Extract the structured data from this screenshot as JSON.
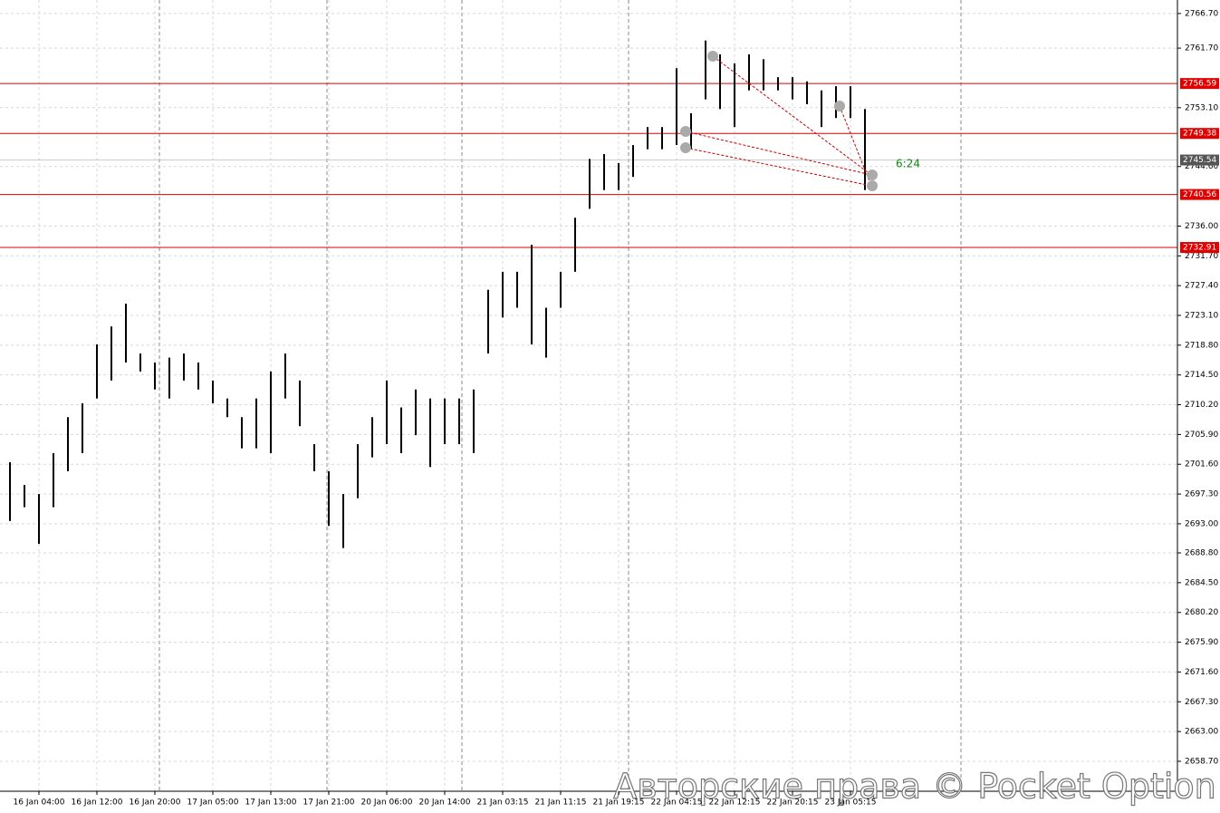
{
  "chart_data": {
    "type": "hilo",
    "color": "#000000",
    "ylim": [
      2653.46,
      2768.65
    ],
    "yticks": [
      {
        "value": 2766.7,
        "label": "2766.70"
      },
      {
        "value": 2761.7,
        "label": "2761.70"
      },
      {
        "value": 2753.1,
        "label": "2753.10"
      },
      {
        "value": 2744.6,
        "label": "2744.60"
      },
      {
        "value": 2736.0,
        "label": "2736.00"
      },
      {
        "value": 2731.7,
        "label": "2731.70"
      },
      {
        "value": 2727.4,
        "label": "2727.40"
      },
      {
        "value": 2723.1,
        "label": "2723.10"
      },
      {
        "value": 2718.8,
        "label": "2718.80"
      },
      {
        "value": 2714.5,
        "label": "2714.50"
      },
      {
        "value": 2710.2,
        "label": "2710.20"
      },
      {
        "value": 2705.9,
        "label": "2705.90"
      },
      {
        "value": 2701.6,
        "label": "2701.60"
      },
      {
        "value": 2697.3,
        "label": "2697.30"
      },
      {
        "value": 2693.0,
        "label": "2693.00"
      },
      {
        "value": 2688.8,
        "label": "2688.80"
      },
      {
        "value": 2684.5,
        "label": "2684.50"
      },
      {
        "value": 2680.2,
        "label": "2680.20"
      },
      {
        "value": 2675.9,
        "label": "2675.90"
      },
      {
        "value": 2671.6,
        "label": "2671.60"
      },
      {
        "value": 2667.3,
        "label": "2667.30"
      },
      {
        "value": 2663.0,
        "label": "2663.00"
      },
      {
        "value": 2658.7,
        "label": "2658.70"
      }
    ],
    "grid": true,
    "categories": [
      null,
      null,
      "16 Jan 04:00",
      null,
      null,
      null,
      "16 Jan 12:00",
      null,
      null,
      null,
      "16 Jan 20:00",
      null,
      null,
      null,
      "17 Jan 05:00",
      null,
      null,
      null,
      "17 Jan 13:00",
      null,
      null,
      null,
      "17 Jan 21:00",
      null,
      null,
      null,
      "20 Jan 06:00",
      null,
      null,
      null,
      "20 Jan 14:00",
      null,
      null,
      null,
      "21 Jan 03:15",
      null,
      null,
      null,
      "21 Jan 11:15",
      null,
      null,
      null,
      "21 Jan 19:15",
      null,
      null,
      null,
      "22 Jan 04:15",
      null,
      null,
      null,
      "22 Jan 12:15",
      null,
      null,
      null,
      "22 Jan 20:15",
      null,
      null,
      null,
      "23 Jan 05:15",
      null
    ],
    "high": [
      2701.9,
      2698.6,
      2697.3,
      2703.2,
      2708.4,
      2710.4,
      2718.9,
      2721.5,
      2724.8,
      2717.6,
      2716.3,
      2717.0,
      2717.6,
      2716.3,
      2713.7,
      2711.1,
      2708.4,
      2711.1,
      2715.0,
      2717.6,
      2713.7,
      2704.5,
      2700.6,
      2697.3,
      2704.5,
      2708.4,
      2713.7,
      2709.8,
      2712.4,
      2711.1,
      2711.1,
      2711.1,
      2712.4,
      2726.8,
      2729.4,
      2729.4,
      2733.3,
      2724.2,
      2729.4,
      2737.2,
      2745.7,
      2746.4,
      2745.1,
      2747.7,
      2750.3,
      2750.3,
      2758.8,
      2752.3,
      2762.8,
      2760.8,
      2759.5,
      2760.8,
      2760.1,
      2757.5,
      2757.5,
      2756.9,
      2755.6,
      2756.2,
      2756.2,
      2752.9
    ],
    "low": [
      2693.4,
      2695.4,
      2690.1,
      2695.4,
      2700.6,
      2703.2,
      2711.1,
      2713.7,
      2716.3,
      2715.0,
      2712.4,
      2711.1,
      2713.7,
      2712.4,
      2710.4,
      2708.4,
      2703.9,
      2703.9,
      2703.2,
      2711.1,
      2707.1,
      2700.6,
      2692.7,
      2689.5,
      2696.7,
      2702.6,
      2704.5,
      2703.2,
      2705.8,
      2701.2,
      2704.5,
      2704.5,
      2703.2,
      2717.6,
      2722.8,
      2724.2,
      2718.9,
      2717.0,
      2724.2,
      2729.4,
      2738.5,
      2741.2,
      2741.2,
      2743.1,
      2747.1,
      2747.1,
      2747.7,
      2747.1,
      2754.3,
      2752.9,
      2750.3,
      2755.6,
      2755.6,
      2755.6,
      2754.3,
      2753.6,
      2750.3,
      2751.6,
      2751.6,
      2741.2
    ],
    "hlines": [
      2756.59,
      2749.38,
      2740.56,
      2732.91
    ],
    "current_price": 2745.54,
    "timer": "6:24",
    "watermark": "Авторские права © Pocket Option"
  }
}
